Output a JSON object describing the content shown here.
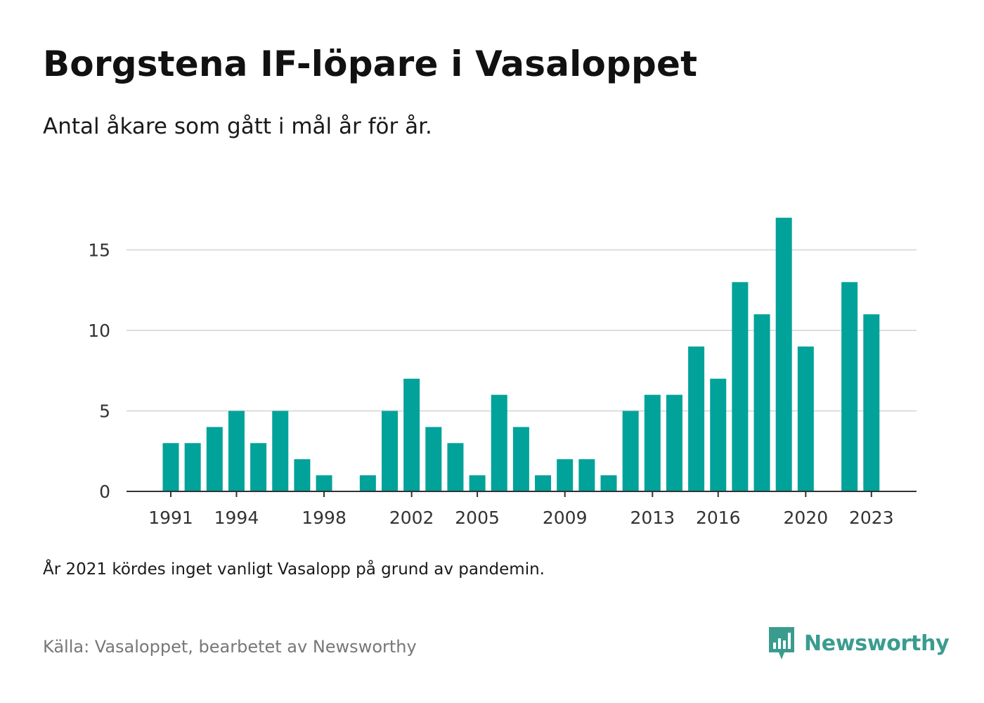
{
  "title": "Borgstena IF-löpare i Vasaloppet",
  "subtitle": "Antal åkare som gått i mål år för år.",
  "note": "År 2021 kördes inget vanligt Vasalopp på grund av pandemin.",
  "source": "Källa: Vasaloppet, bearbetet av Newsworthy",
  "brand": {
    "name": "Newsworthy",
    "icon": "newsworthy-logo-icon",
    "color": "#3a9c8f"
  },
  "colors": {
    "bar": "#00a29a",
    "grid": "#dddddd",
    "axis": "#333333"
  },
  "chart_data": {
    "type": "bar",
    "title": "Borgstena IF-löpare i Vasaloppet",
    "subtitle": "Antal åkare som gått i mål år för år.",
    "xlabel": "",
    "ylabel": "",
    "ylim": [
      0,
      17
    ],
    "grid": true,
    "y_ticks": [
      0,
      5,
      10,
      15
    ],
    "x_ticks": [
      1991,
      1994,
      1998,
      2002,
      2005,
      2009,
      2013,
      2016,
      2020,
      2023
    ],
    "x": [
      1991,
      1992,
      1993,
      1994,
      1995,
      1996,
      1997,
      1998,
      1999,
      2000,
      2001,
      2002,
      2003,
      2004,
      2005,
      2006,
      2007,
      2008,
      2009,
      2010,
      2011,
      2012,
      2013,
      2014,
      2015,
      2016,
      2017,
      2018,
      2019,
      2020,
      2021,
      2022,
      2023
    ],
    "values": [
      3,
      3,
      4,
      5,
      3,
      5,
      2,
      1,
      0,
      1,
      5,
      7,
      4,
      3,
      1,
      6,
      4,
      1,
      2,
      2,
      1,
      5,
      6,
      6,
      9,
      7,
      13,
      11,
      17,
      9,
      0,
      13,
      11
    ]
  }
}
